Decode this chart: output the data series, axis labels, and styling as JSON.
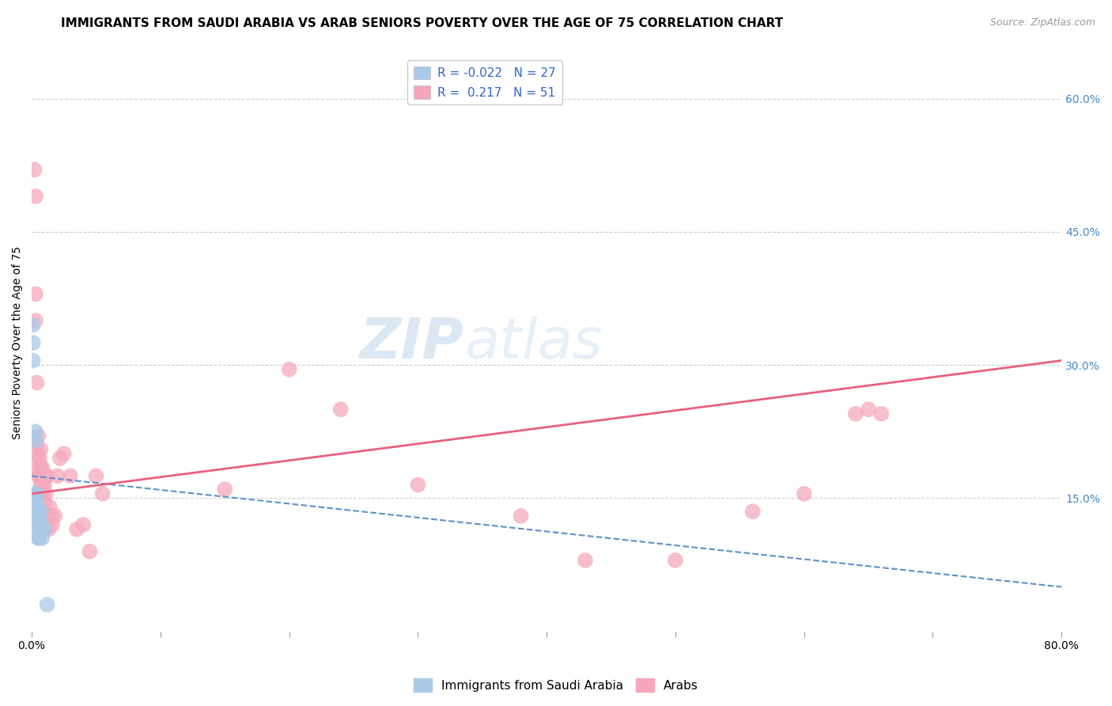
{
  "title": "IMMIGRANTS FROM SAUDI ARABIA VS ARAB SENIORS POVERTY OVER THE AGE OF 75 CORRELATION CHART",
  "source": "Source: ZipAtlas.com",
  "ylabel": "Seniors Poverty Over the Age of 75",
  "xlim": [
    0.0,
    0.8
  ],
  "ylim": [
    0.0,
    0.65
  ],
  "xticks": [
    0.0,
    0.1,
    0.2,
    0.3,
    0.4,
    0.5,
    0.6,
    0.7,
    0.8
  ],
  "xticklabels": [
    "0.0%",
    "",
    "",
    "",
    "",
    "",
    "",
    "",
    "80.0%"
  ],
  "yticks_right": [
    0.15,
    0.3,
    0.45,
    0.6
  ],
  "ytick_labels_right": [
    "15.0%",
    "30.0%",
    "45.0%",
    "60.0%"
  ],
  "legend_r1": "R = -0.022",
  "legend_n1": "N = 27",
  "legend_r2": "R =  0.217",
  "legend_n2": "N = 51",
  "blue_color": "#aac9e8",
  "pink_color": "#f5a8bc",
  "blue_line_color": "#6090c8",
  "pink_line_color": "#e86080",
  "watermark_zip": "ZIP",
  "watermark_atlas": "atlas",
  "grid_color": "#cccccc",
  "background_color": "#ffffff",
  "title_fontsize": 11,
  "axis_label_fontsize": 10,
  "tick_fontsize": 10,
  "legend_fontsize": 11,
  "watermark_fontsize_zip": 52,
  "watermark_fontsize_atlas": 52,
  "blue_scatter_x": [
    0.001,
    0.001,
    0.001,
    0.002,
    0.002,
    0.002,
    0.002,
    0.003,
    0.003,
    0.003,
    0.003,
    0.004,
    0.004,
    0.004,
    0.004,
    0.005,
    0.005,
    0.005,
    0.005,
    0.006,
    0.006,
    0.006,
    0.007,
    0.007,
    0.008,
    0.01,
    0.012
  ],
  "blue_scatter_y": [
    0.345,
    0.325,
    0.305,
    0.155,
    0.145,
    0.135,
    0.125,
    0.225,
    0.215,
    0.135,
    0.125,
    0.155,
    0.145,
    0.135,
    0.125,
    0.135,
    0.125,
    0.115,
    0.105,
    0.125,
    0.115,
    0.105,
    0.135,
    0.125,
    0.105,
    0.115,
    0.03
  ],
  "pink_scatter_x": [
    0.002,
    0.003,
    0.003,
    0.003,
    0.004,
    0.004,
    0.004,
    0.005,
    0.005,
    0.005,
    0.005,
    0.006,
    0.006,
    0.006,
    0.007,
    0.007,
    0.007,
    0.008,
    0.008,
    0.009,
    0.01,
    0.01,
    0.011,
    0.011,
    0.012,
    0.013,
    0.014,
    0.015,
    0.016,
    0.018,
    0.02,
    0.022,
    0.025,
    0.03,
    0.035,
    0.04,
    0.045,
    0.05,
    0.055,
    0.15,
    0.2,
    0.24,
    0.3,
    0.38,
    0.43,
    0.5,
    0.56,
    0.6,
    0.64,
    0.65,
    0.66
  ],
  "pink_scatter_y": [
    0.52,
    0.49,
    0.38,
    0.35,
    0.28,
    0.21,
    0.185,
    0.22,
    0.2,
    0.175,
    0.155,
    0.195,
    0.175,
    0.155,
    0.205,
    0.185,
    0.165,
    0.185,
    0.165,
    0.155,
    0.165,
    0.145,
    0.175,
    0.155,
    0.175,
    0.115,
    0.14,
    0.13,
    0.12,
    0.13,
    0.175,
    0.195,
    0.2,
    0.175,
    0.115,
    0.12,
    0.09,
    0.175,
    0.155,
    0.16,
    0.295,
    0.25,
    0.165,
    0.13,
    0.08,
    0.08,
    0.135,
    0.155,
    0.245,
    0.25,
    0.245
  ],
  "blue_trend_y_start": 0.175,
  "blue_trend_y_end": 0.05,
  "pink_trend_y_start": 0.155,
  "pink_trend_y_end": 0.305
}
